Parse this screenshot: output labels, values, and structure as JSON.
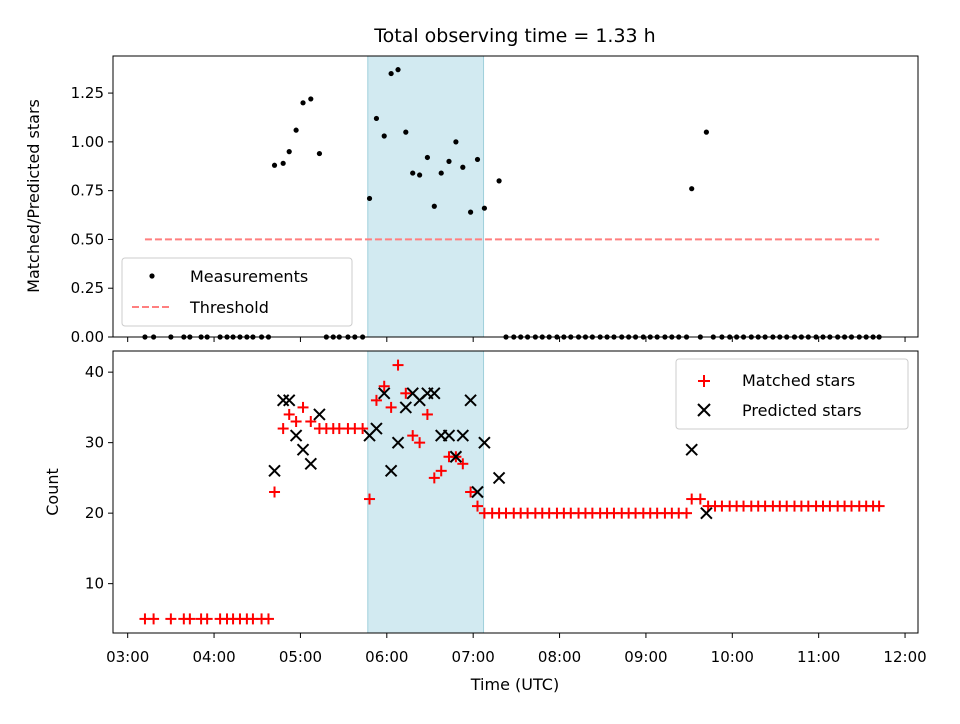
{
  "chart_data": {
    "title": "Total observing time = 1.33 h",
    "xlabel": "Time (UTC)",
    "x_tick_labels": [
      "03:00",
      "04:00",
      "05:00",
      "06:00",
      "07:00",
      "08:00",
      "09:00",
      "10:00",
      "11:00",
      "12:00"
    ],
    "x_range_hours": [
      2.83,
      12.15
    ],
    "shaded_span_hours": [
      5.78,
      7.12
    ],
    "colors": {
      "shade": "#add8e6",
      "threshold": "#ff7f7f",
      "matched": "#ff0000",
      "predicted": "#000000",
      "measure": "#000000"
    },
    "panels": [
      {
        "type": "scatter",
        "ylabel": "Matched/Predicted stars",
        "ylim": [
          0,
          1.44
        ],
        "y_ticks": [
          "0.00",
          "0.25",
          "0.50",
          "0.75",
          "1.00",
          "1.25"
        ],
        "y_tick_values": [
          0,
          0.25,
          0.5,
          0.75,
          1.0,
          1.25
        ],
        "threshold": 0.5,
        "threshold_x": [
          3.2,
          11.7
        ],
        "legend_placement": "lower-left",
        "series": [
          {
            "name": "Measurements",
            "kind": "points",
            "points": [
              [
                4.7,
                0.88
              ],
              [
                4.8,
                0.89
              ],
              [
                4.87,
                0.95
              ],
              [
                4.95,
                1.06
              ],
              [
                5.03,
                1.2
              ],
              [
                5.12,
                1.22
              ],
              [
                5.22,
                0.94
              ],
              [
                5.8,
                0.71
              ],
              [
                5.88,
                1.12
              ],
              [
                5.97,
                1.03
              ],
              [
                6.05,
                1.35
              ],
              [
                6.13,
                1.37
              ],
              [
                6.22,
                1.05
              ],
              [
                6.3,
                0.84
              ],
              [
                6.38,
                0.83
              ],
              [
                6.47,
                0.92
              ],
              [
                6.55,
                0.67
              ],
              [
                6.63,
                0.84
              ],
              [
                6.72,
                0.9
              ],
              [
                6.8,
                1.0
              ],
              [
                6.88,
                0.87
              ],
              [
                6.97,
                0.64
              ],
              [
                7.05,
                0.91
              ],
              [
                7.13,
                0.66
              ],
              [
                7.3,
                0.8
              ],
              [
                9.53,
                0.76
              ],
              [
                9.7,
                1.05
              ]
            ]
          },
          {
            "name": "Threshold",
            "kind": "dashed-line"
          }
        ],
        "zero_points_x": [
          3.2,
          3.3,
          3.5,
          3.65,
          3.72,
          3.85,
          3.92,
          4.07,
          4.15,
          4.22,
          4.3,
          4.38,
          4.45,
          4.55,
          4.63,
          5.3,
          5.38,
          5.45,
          5.55,
          5.63,
          5.72,
          7.38,
          7.47,
          7.55,
          7.63,
          7.72,
          7.8,
          7.88,
          7.97,
          8.05,
          8.13,
          8.22,
          8.3,
          8.38,
          8.47,
          8.55,
          8.63,
          8.72,
          8.8,
          8.88,
          8.97,
          9.05,
          9.13,
          9.22,
          9.3,
          9.38,
          9.47,
          9.63,
          9.78,
          9.88,
          9.97,
          10.05,
          10.13,
          10.22,
          10.3,
          10.38,
          10.47,
          10.55,
          10.63,
          10.72,
          10.8,
          10.88,
          10.97,
          11.05,
          11.13,
          11.22,
          11.3,
          11.38,
          11.47,
          11.55,
          11.63,
          11.7
        ]
      },
      {
        "type": "scatter",
        "ylabel": "Count",
        "ylim": [
          3,
          43
        ],
        "y_ticks": [
          "10",
          "20",
          "30",
          "40"
        ],
        "y_tick_values": [
          10,
          20,
          30,
          40
        ],
        "legend_placement": "upper-right",
        "series": [
          {
            "name": "Matched stars",
            "marker": "+",
            "points": [
              [
                3.2,
                5
              ],
              [
                3.3,
                5
              ],
              [
                3.5,
                5
              ],
              [
                3.65,
                5
              ],
              [
                3.72,
                5
              ],
              [
                3.85,
                5
              ],
              [
                3.92,
                5
              ],
              [
                4.07,
                5
              ],
              [
                4.15,
                5
              ],
              [
                4.22,
                5
              ],
              [
                4.3,
                5
              ],
              [
                4.38,
                5
              ],
              [
                4.45,
                5
              ],
              [
                4.55,
                5
              ],
              [
                4.63,
                5
              ],
              [
                4.7,
                23
              ],
              [
                4.8,
                32
              ],
              [
                4.87,
                34
              ],
              [
                4.95,
                33
              ],
              [
                5.03,
                35
              ],
              [
                5.12,
                33
              ],
              [
                5.22,
                32
              ],
              [
                5.3,
                32
              ],
              [
                5.38,
                32
              ],
              [
                5.45,
                32
              ],
              [
                5.55,
                32
              ],
              [
                5.63,
                32
              ],
              [
                5.72,
                32
              ],
              [
                5.8,
                22
              ],
              [
                5.88,
                36
              ],
              [
                5.97,
                38
              ],
              [
                6.05,
                35
              ],
              [
                6.13,
                41
              ],
              [
                6.22,
                37
              ],
              [
                6.3,
                31
              ],
              [
                6.38,
                30
              ],
              [
                6.47,
                34
              ],
              [
                6.55,
                25
              ],
              [
                6.63,
                26
              ],
              [
                6.72,
                28
              ],
              [
                6.8,
                28
              ],
              [
                6.88,
                27
              ],
              [
                6.97,
                23
              ],
              [
                7.05,
                21
              ],
              [
                7.13,
                20
              ],
              [
                7.22,
                20
              ],
              [
                7.3,
                20
              ],
              [
                7.38,
                20
              ],
              [
                7.47,
                20
              ],
              [
                7.55,
                20
              ],
              [
                7.63,
                20
              ],
              [
                7.72,
                20
              ],
              [
                7.8,
                20
              ],
              [
                7.88,
                20
              ],
              [
                7.97,
                20
              ],
              [
                8.05,
                20
              ],
              [
                8.13,
                20
              ],
              [
                8.22,
                20
              ],
              [
                8.3,
                20
              ],
              [
                8.38,
                20
              ],
              [
                8.47,
                20
              ],
              [
                8.55,
                20
              ],
              [
                8.63,
                20
              ],
              [
                8.72,
                20
              ],
              [
                8.8,
                20
              ],
              [
                8.88,
                20
              ],
              [
                8.97,
                20
              ],
              [
                9.05,
                20
              ],
              [
                9.13,
                20
              ],
              [
                9.22,
                20
              ],
              [
                9.3,
                20
              ],
              [
                9.38,
                20
              ],
              [
                9.47,
                20
              ],
              [
                9.53,
                22
              ],
              [
                9.63,
                22
              ],
              [
                9.72,
                21
              ],
              [
                9.8,
                21
              ],
              [
                9.88,
                21
              ],
              [
                9.97,
                21
              ],
              [
                10.05,
                21
              ],
              [
                10.13,
                21
              ],
              [
                10.22,
                21
              ],
              [
                10.3,
                21
              ],
              [
                10.38,
                21
              ],
              [
                10.47,
                21
              ],
              [
                10.55,
                21
              ],
              [
                10.63,
                21
              ],
              [
                10.72,
                21
              ],
              [
                10.8,
                21
              ],
              [
                10.88,
                21
              ],
              [
                10.97,
                21
              ],
              [
                11.05,
                21
              ],
              [
                11.13,
                21
              ],
              [
                11.22,
                21
              ],
              [
                11.3,
                21
              ],
              [
                11.38,
                21
              ],
              [
                11.47,
                21
              ],
              [
                11.55,
                21
              ],
              [
                11.63,
                21
              ],
              [
                11.7,
                21
              ]
            ]
          },
          {
            "name": "Predicted stars",
            "marker": "x",
            "points": [
              [
                4.7,
                26
              ],
              [
                4.8,
                36
              ],
              [
                4.87,
                36
              ],
              [
                4.95,
                31
              ],
              [
                5.03,
                29
              ],
              [
                5.12,
                27
              ],
              [
                5.22,
                34
              ],
              [
                5.8,
                31
              ],
              [
                5.88,
                32
              ],
              [
                5.97,
                37
              ],
              [
                6.05,
                26
              ],
              [
                6.13,
                30
              ],
              [
                6.22,
                35
              ],
              [
                6.3,
                37
              ],
              [
                6.38,
                36
              ],
              [
                6.47,
                37
              ],
              [
                6.55,
                37
              ],
              [
                6.63,
                31
              ],
              [
                6.72,
                31
              ],
              [
                6.8,
                28
              ],
              [
                6.88,
                31
              ],
              [
                6.97,
                36
              ],
              [
                7.05,
                23
              ],
              [
                7.13,
                30
              ],
              [
                7.3,
                25
              ],
              [
                9.53,
                29
              ],
              [
                9.7,
                20
              ]
            ]
          }
        ]
      }
    ]
  }
}
